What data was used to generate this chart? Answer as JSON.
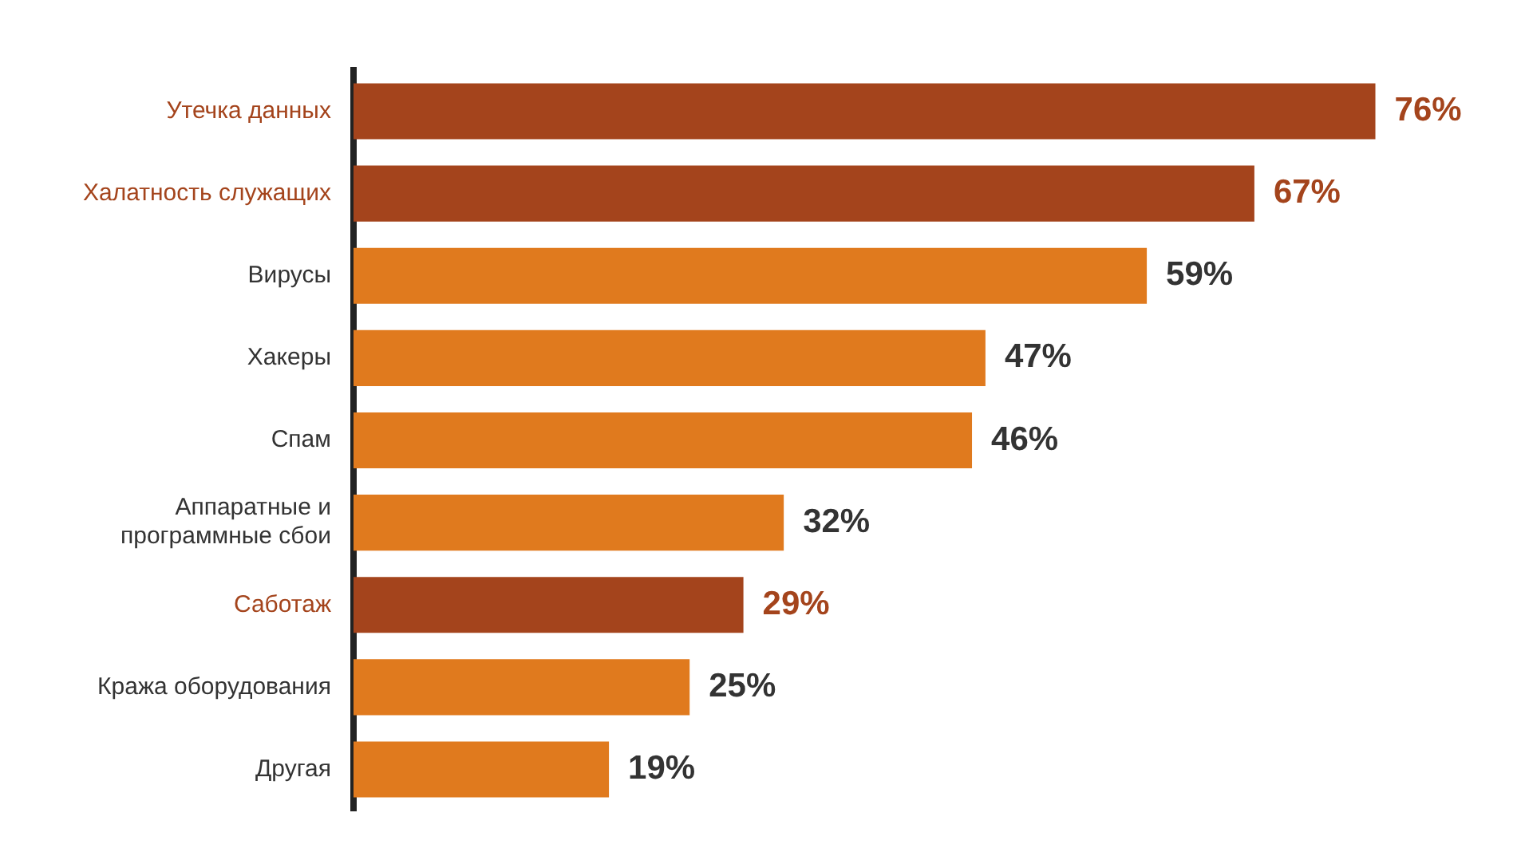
{
  "chart_data": {
    "type": "bar",
    "orientation": "horizontal",
    "tick_labels": "y",
    "categories": [
      "Утечка данных",
      "Халатность служащих",
      "Вирусы",
      "Хакеры",
      "Спам",
      "Аппаратные и программные сбои",
      "Саботаж",
      "Кража оборудования",
      "Другая"
    ],
    "values": [
      76,
      67,
      59,
      47,
      46,
      32,
      29,
      25,
      19
    ],
    "colors": [
      "#a4441c",
      "#a4441c",
      "#e07a1e",
      "#e07a1e",
      "#e07a1e",
      "#e07a1e",
      "#a4441c",
      "#e07a1e",
      "#e07a1e"
    ],
    "value_labels": [
      "76%",
      "67%",
      "59%",
      "47%",
      "46%",
      "32%",
      "29%",
      "25%",
      "19%"
    ]
  }
}
